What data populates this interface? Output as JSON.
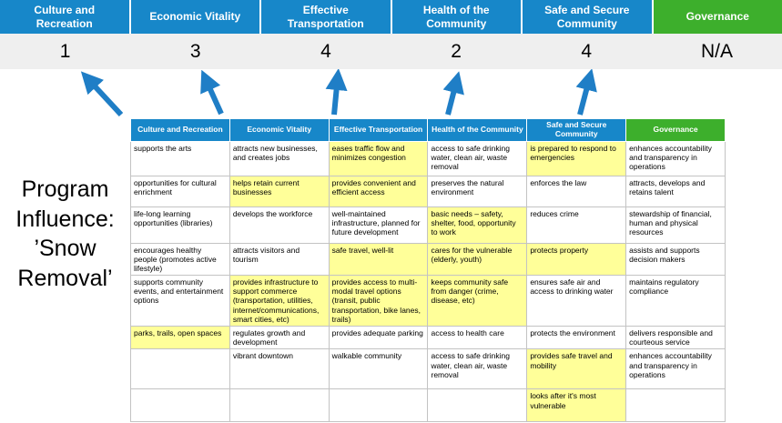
{
  "colors": {
    "header_blue": "#1787c9",
    "header_green": "#3daf2c",
    "score_band_bg": "#efefef",
    "highlight_yellow": "#ffff99",
    "arrow_blue": "#1f7ec6",
    "grid_gray": "#c3c3c3"
  },
  "scoreboard": {
    "columns": [
      {
        "label": "Culture and Recreation",
        "score": "1",
        "accent": "blue"
      },
      {
        "label": "Economic Vitality",
        "score": "3",
        "accent": "blue"
      },
      {
        "label": "Effective Transportation",
        "score": "4",
        "accent": "blue"
      },
      {
        "label": "Health of the Community",
        "score": "2",
        "accent": "blue"
      },
      {
        "label": "Safe and Secure Community",
        "score": "4",
        "accent": "blue"
      },
      {
        "label": "Governance",
        "score": "N/A",
        "accent": "green"
      }
    ]
  },
  "program_label": {
    "lines": [
      "Program",
      "Influence:",
      "’Snow",
      "Removal’"
    ]
  },
  "matrix": {
    "headers": [
      {
        "label": "Culture and Recreation",
        "accent": "blue"
      },
      {
        "label": "Economic Vitality",
        "accent": "blue"
      },
      {
        "label": "Effective Transportation",
        "accent": "blue"
      },
      {
        "label": "Health of the Community",
        "accent": "blue"
      },
      {
        "label": "Safe and Secure Community",
        "accent": "blue"
      },
      {
        "label": "Governance",
        "accent": "green"
      }
    ],
    "rows": [
      [
        {
          "text": "supports the arts",
          "highlight": false
        },
        {
          "text": "attracts new businesses, and creates jobs",
          "highlight": false
        },
        {
          "text": "eases traffic flow and minimizes congestion",
          "highlight": true
        },
        {
          "text": "access to safe drinking water, clean air, waste removal",
          "highlight": false
        },
        {
          "text": "is prepared to respond to emergencies",
          "highlight": true
        },
        {
          "text": "enhances accountability and transparency in operations",
          "highlight": false
        }
      ],
      [
        {
          "text": "opportunities for cultural enrichment",
          "highlight": false
        },
        {
          "text": "helps retain current businesses",
          "highlight": true
        },
        {
          "text": "provides convenient and efficient access",
          "highlight": true
        },
        {
          "text": "preserves the natural environment",
          "highlight": false
        },
        {
          "text": "enforces the law",
          "highlight": false
        },
        {
          "text": "attracts, develops and retains talent",
          "highlight": false
        }
      ],
      [
        {
          "text": "life-long learning opportunities (libraries)",
          "highlight": false
        },
        {
          "text": "develops the workforce",
          "highlight": false
        },
        {
          "text": "well-maintained infrastructure, planned for future development",
          "highlight": false
        },
        {
          "text": "basic needs – safety, shelter, food, opportunity to work",
          "highlight": true
        },
        {
          "text": "reduces crime",
          "highlight": false
        },
        {
          "text": "stewardship of financial, human and physical resources",
          "highlight": false
        }
      ],
      [
        {
          "text": "encourages healthy people (promotes active lifestyle)",
          "highlight": false
        },
        {
          "text": "attracts visitors and tourism",
          "highlight": false
        },
        {
          "text": "safe travel, well-lit",
          "highlight": true
        },
        {
          "text": "cares for the vulnerable (elderly, youth)",
          "highlight": true
        },
        {
          "text": "protects property",
          "highlight": true
        },
        {
          "text": "assists and supports decision makers",
          "highlight": false
        }
      ],
      [
        {
          "text": "supports community events, and entertainment options",
          "highlight": false
        },
        {
          "text": "provides infrastructure to support commerce (transportation, utilities, internet/communications, smart cities, etc)",
          "highlight": true
        },
        {
          "text": "provides access to multi-modal travel options (transit, public transportation, bike lanes, trails)",
          "highlight": true
        },
        {
          "text": "keeps community safe from danger (crime, disease, etc)",
          "highlight": true
        },
        {
          "text": "ensures safe air and access to drinking water",
          "highlight": false
        },
        {
          "text": "maintains regulatory compliance",
          "highlight": false
        }
      ],
      [
        {
          "text": "parks, trails, open spaces",
          "highlight": true
        },
        {
          "text": "regulates growth and development",
          "highlight": false
        },
        {
          "text": "provides adequate parking",
          "highlight": false
        },
        {
          "text": "access to health care",
          "highlight": false
        },
        {
          "text": "protects the environment",
          "highlight": false
        },
        {
          "text": "delivers responsible and courteous service",
          "highlight": false
        }
      ],
      [
        {
          "text": "",
          "highlight": false
        },
        {
          "text": "vibrant downtown",
          "highlight": false
        },
        {
          "text": "walkable community",
          "highlight": false
        },
        {
          "text": "access to safe drinking water, clean air, waste removal",
          "highlight": false
        },
        {
          "text": "provides safe travel and mobility",
          "highlight": true
        },
        {
          "text": "enhances accountability and transparency in operations",
          "highlight": false
        }
      ],
      [
        {
          "text": "",
          "highlight": false
        },
        {
          "text": "",
          "highlight": false
        },
        {
          "text": "",
          "highlight": false
        },
        {
          "text": "",
          "highlight": false
        },
        {
          "text": "looks after it's most vulnerable",
          "highlight": true
        },
        {
          "text": "",
          "highlight": false
        }
      ]
    ]
  }
}
